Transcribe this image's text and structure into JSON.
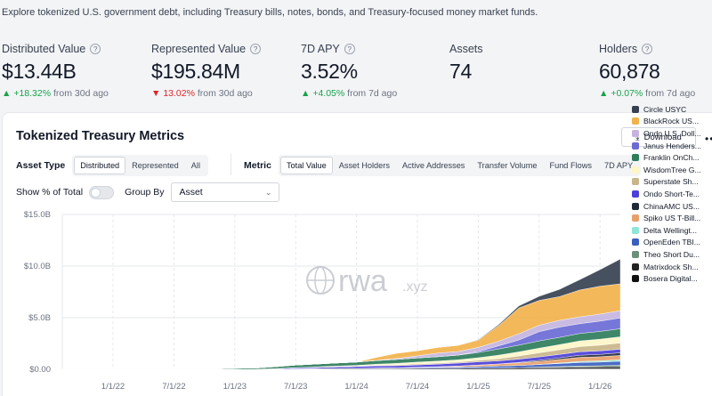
{
  "intro": "Explore tokenized U.S. government debt, including Treasury bills, notes, bonds, and Treasury-focused money market funds.",
  "stats": [
    {
      "label": "Distributed Value",
      "help": "?",
      "value": "$13.44B",
      "delta_arrow": "▲",
      "delta": "+18.32%",
      "from": "from 30d ago",
      "trend": "up"
    },
    {
      "label": "Represented Value",
      "help": "?",
      "value": "$195.84M",
      "delta_arrow": "▼",
      "delta": "13.02%",
      "from": "from 30d ago",
      "trend": "down"
    },
    {
      "label": "7D APY",
      "help": "?",
      "value": "3.52%",
      "delta_arrow": "▲",
      "delta": "+4.05%",
      "from": "from 7d ago",
      "trend": "up"
    },
    {
      "label": "Assets",
      "help": "",
      "value": "74",
      "delta_arrow": "",
      "delta": "",
      "from": "",
      "trend": ""
    },
    {
      "label": "Holders",
      "help": "?",
      "value": "60,878",
      "delta_arrow": "▲",
      "delta": "+0.07%",
      "from": "from 7d ago",
      "trend": "up"
    }
  ],
  "card": {
    "title": "Tokenized Treasury Metrics",
    "download_label": "Download",
    "more": "•••",
    "asset_type_label": "Asset Type",
    "asset_type_options": [
      "Distributed",
      "Represented",
      "All"
    ],
    "asset_type_selected": "Distributed",
    "metric_label": "Metric",
    "metric_options": [
      "Total Value",
      "Asset Holders",
      "Active Addresses",
      "Transfer Volume",
      "Fund Flows",
      "7D APY"
    ],
    "metric_selected": "Total Value",
    "show_pct_label": "Show % of Total",
    "show_pct_on": false,
    "group_by_label": "Group By",
    "group_by_value": "Asset",
    "watermark": {
      "brand": "rwa",
      "suffix": ".xyz"
    }
  },
  "chart_data": {
    "type": "area",
    "stacked": true,
    "x": [
      "2021-08",
      "2021-10",
      "2022-01",
      "2022-04",
      "2022-07",
      "2022-10",
      "2023-01",
      "2023-03",
      "2023-05",
      "2023-07",
      "2023-09",
      "2023-11",
      "2024-01",
      "2024-03",
      "2024-05",
      "2024-07",
      "2024-09",
      "2024-11",
      "2025-01",
      "2025-03",
      "2025-05",
      "2025-07",
      "2025-09",
      "2025-11",
      "2026-01",
      "2026-03"
    ],
    "x_tick_labels": [
      "1/1/22",
      "7/1/22",
      "1/1/23",
      "7/1/23",
      "1/1/24",
      "7/1/24",
      "1/1/25",
      "7/1/25",
      "1/1/26"
    ],
    "y_tick_labels": [
      "$0.00",
      "$5.0B",
      "$10.0B",
      "$15.0B"
    ],
    "ylim": [
      0,
      15
    ],
    "y_unit": "USD billions",
    "grid": true,
    "legend_position": "right",
    "series": [
      {
        "name": "Circle USYC",
        "color": "#374151",
        "values": [
          0,
          0,
          0,
          0,
          0,
          0,
          0,
          0,
          0,
          0,
          0,
          0,
          0,
          0,
          0,
          0,
          0,
          0,
          0.05,
          0.1,
          0.2,
          0.4,
          0.7,
          1.0,
          1.6,
          2.4
        ]
      },
      {
        "name": "BlackRock US...",
        "color": "#f2b24c",
        "values": [
          0,
          0,
          0,
          0,
          0,
          0,
          0,
          0,
          0,
          0,
          0,
          0,
          0,
          0.3,
          0.5,
          0.5,
          0.55,
          0.6,
          0.7,
          1.5,
          2.5,
          2.4,
          2.3,
          2.6,
          2.7,
          2.6
        ]
      },
      {
        "name": "Ondo U.S. Doll...",
        "color": "#c4b5e0",
        "values": [
          0,
          0,
          0,
          0,
          0,
          0,
          0,
          0,
          0,
          0,
          0,
          0,
          0,
          0.02,
          0.1,
          0.2,
          0.35,
          0.35,
          0.4,
          0.45,
          0.6,
          0.62,
          0.65,
          0.66,
          0.68,
          0.7
        ]
      },
      {
        "name": "Janus Henders...",
        "color": "#6b6bd6",
        "values": [
          0,
          0,
          0,
          0,
          0,
          0,
          0,
          0,
          0,
          0,
          0,
          0,
          0,
          0,
          0,
          0,
          0,
          0,
          0.1,
          0.3,
          0.5,
          0.9,
          1.0,
          0.95,
          1.0,
          1.05
        ]
      },
      {
        "name": "Franklin OnCh...",
        "color": "#2e7d5b",
        "values": [
          0,
          0,
          0,
          0,
          0,
          0,
          0.1,
          0.12,
          0.18,
          0.25,
          0.28,
          0.3,
          0.32,
          0.35,
          0.38,
          0.4,
          0.42,
          0.45,
          0.5,
          0.6,
          0.65,
          0.7,
          0.7,
          0.72,
          0.75,
          0.78
        ]
      },
      {
        "name": "WisdomTree G...",
        "color": "#fdf6c7",
        "values": [
          0,
          0,
          0,
          0,
          0,
          0,
          0,
          0,
          0,
          0.02,
          0.05,
          0.08,
          0.1,
          0.12,
          0.15,
          0.18,
          0.2,
          0.22,
          0.25,
          0.35,
          0.4,
          0.45,
          0.5,
          0.55,
          0.58,
          0.6
        ]
      },
      {
        "name": "Superstate Sh...",
        "color": "#c9b58a",
        "values": [
          0,
          0,
          0,
          0,
          0,
          0,
          0,
          0,
          0,
          0,
          0,
          0,
          0,
          0.05,
          0.08,
          0.1,
          0.1,
          0.1,
          0.15,
          0.2,
          0.3,
          0.4,
          0.45,
          0.5,
          0.55,
          0.6
        ]
      },
      {
        "name": "Ondo Short-Te...",
        "color": "#4b3fd9",
        "values": [
          0,
          0,
          0,
          0,
          0,
          0,
          0,
          0,
          0.05,
          0.1,
          0.12,
          0.15,
          0.18,
          0.2,
          0.2,
          0.22,
          0.25,
          0.28,
          0.3,
          0.3,
          0.32,
          0.33,
          0.33,
          0.34,
          0.35,
          0.35
        ]
      },
      {
        "name": "ChinaAMC US...",
        "color": "#1f2937",
        "values": [
          0,
          0,
          0,
          0,
          0,
          0,
          0,
          0,
          0,
          0,
          0,
          0,
          0,
          0,
          0,
          0,
          0,
          0,
          0,
          0,
          0.05,
          0.1,
          0.15,
          0.2,
          0.22,
          0.25
        ]
      },
      {
        "name": "Spiko US T-Bill...",
        "color": "#e8a06b",
        "values": [
          0,
          0,
          0,
          0,
          0,
          0,
          0,
          0,
          0,
          0,
          0,
          0,
          0,
          0,
          0,
          0.02,
          0.05,
          0.1,
          0.15,
          0.2,
          0.25,
          0.3,
          0.35,
          0.4,
          0.4,
          0.42
        ]
      },
      {
        "name": "Delta Wellingt...",
        "color": "#8fe6d6",
        "values": [
          0,
          0,
          0,
          0,
          0,
          0,
          0,
          0,
          0,
          0,
          0,
          0,
          0,
          0,
          0,
          0,
          0,
          0,
          0,
          0,
          0,
          0,
          0.05,
          0.1,
          0.12,
          0.15
        ]
      },
      {
        "name": "OpenEden TBI...",
        "color": "#3b5fc0",
        "values": [
          0,
          0,
          0,
          0,
          0,
          0,
          0,
          0,
          0,
          0,
          0.01,
          0.02,
          0.03,
          0.05,
          0.06,
          0.08,
          0.1,
          0.12,
          0.15,
          0.2,
          0.22,
          0.25,
          0.3,
          0.35,
          0.35,
          0.38
        ]
      },
      {
        "name": "Theo Short Du...",
        "color": "#6b8f7a",
        "values": [
          0,
          0,
          0,
          0,
          0,
          0,
          0,
          0,
          0,
          0,
          0,
          0,
          0,
          0,
          0,
          0,
          0,
          0,
          0,
          0,
          0,
          0.05,
          0.08,
          0.1,
          0.12,
          0.15
        ]
      },
      {
        "name": "Matrixdock Sh...",
        "color": "#222222",
        "values": [
          0,
          0,
          0,
          0,
          0,
          0,
          0,
          0,
          0.02,
          0.04,
          0.05,
          0.06,
          0.07,
          0.08,
          0.09,
          0.1,
          0.1,
          0.1,
          0.12,
          0.12,
          0.15,
          0.15,
          0.15,
          0.16,
          0.17,
          0.18
        ]
      },
      {
        "name": "Bosera Digital...",
        "color": "#111111",
        "values": [
          0,
          0,
          0,
          0,
          0,
          0,
          0,
          0,
          0,
          0,
          0,
          0,
          0,
          0,
          0,
          0,
          0,
          0,
          0,
          0,
          0,
          0.02,
          0.03,
          0.05,
          0.06,
          0.07
        ]
      }
    ]
  }
}
